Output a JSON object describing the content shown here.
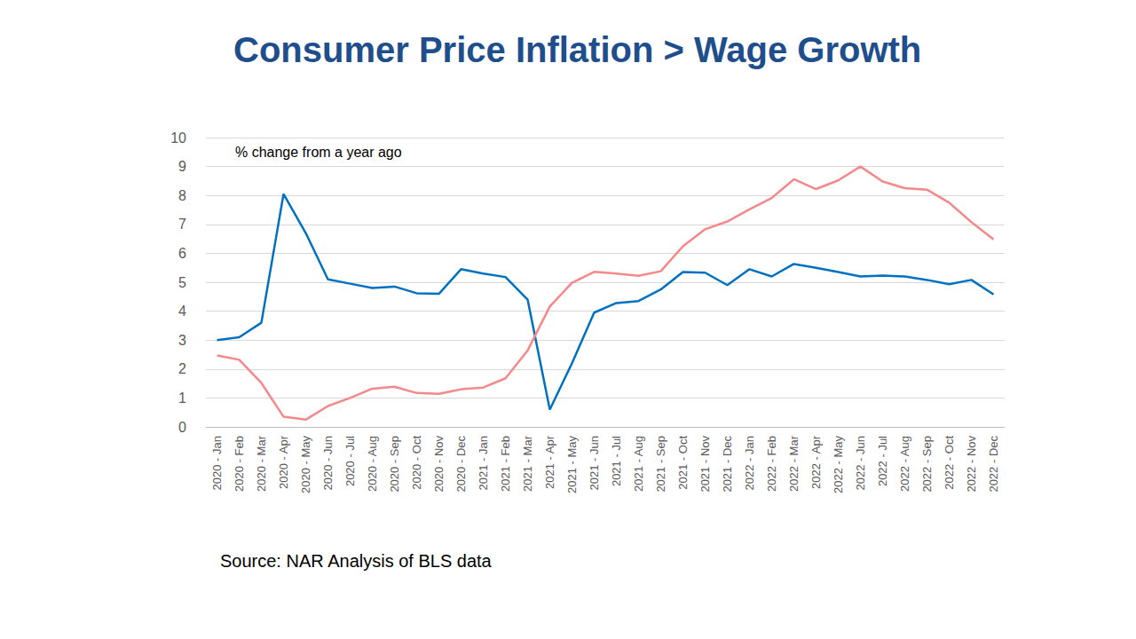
{
  "chart_data": {
    "type": "line",
    "title": "Consumer Price Inflation > Wage Growth",
    "annotation": "% change from a year ago",
    "source": "Source: NAR Analysis of BLS data",
    "categories": [
      "2020 - Jan",
      "2020 - Feb",
      "2020 - Mar",
      "2020 - Apr",
      "2020 - May",
      "2020 - Jun",
      "2020 - Jul",
      "2020 - Aug",
      "2020 - Sep",
      "2020 - Oct",
      "2020 - Nov",
      "2020 - Dec",
      "2021 - Jan",
      "2021 - Feb",
      "2021 - Mar",
      "2021 - Apr",
      "2021 - May",
      "2021 - Jun",
      "2021 - Jul",
      "2021 - Aug",
      "2021 - Sep",
      "2021 - Oct",
      "2021 - Nov",
      "2021 - Dec",
      "2022 - Jan",
      "2022 - Feb",
      "2022 - Mar",
      "2022 - Apr",
      "2022 - May",
      "2022 - Jun",
      "2022 - Jul",
      "2022 - Aug",
      "2022 - Sep",
      "2022 - Oct",
      "2022 - Nov",
      "2022 - Dec"
    ],
    "series": [
      {
        "color": "#0070c0",
        "marker": "none",
        "values": [
          3.0,
          3.1,
          3.6,
          8.05,
          6.7,
          5.1,
          4.95,
          4.8,
          4.85,
          4.62,
          4.6,
          5.45,
          5.3,
          5.18,
          4.4,
          0.6,
          2.2,
          3.95,
          4.28,
          4.35,
          4.75,
          5.35,
          5.33,
          4.9,
          5.45,
          5.2,
          5.63,
          5.5,
          5.35,
          5.2,
          5.23,
          5.2,
          5.08,
          4.93,
          5.08,
          4.58
        ]
      },
      {
        "color": "#f4888a",
        "marker": "none",
        "values": [
          2.47,
          2.32,
          1.52,
          0.35,
          0.25,
          0.72,
          1.0,
          1.32,
          1.39,
          1.17,
          1.14,
          1.3,
          1.36,
          1.68,
          2.64,
          4.16,
          4.98,
          5.36,
          5.3,
          5.22,
          5.38,
          6.24,
          6.83,
          7.1,
          7.52,
          7.91,
          8.56,
          8.22,
          8.52,
          9.0,
          8.48,
          8.25,
          8.2,
          7.75,
          7.08,
          6.48
        ]
      }
    ],
    "ylim": [
      0,
      10
    ],
    "yticks": [
      0,
      1,
      2,
      3,
      4,
      5,
      6,
      7,
      8,
      9,
      10
    ],
    "grid": true
  }
}
